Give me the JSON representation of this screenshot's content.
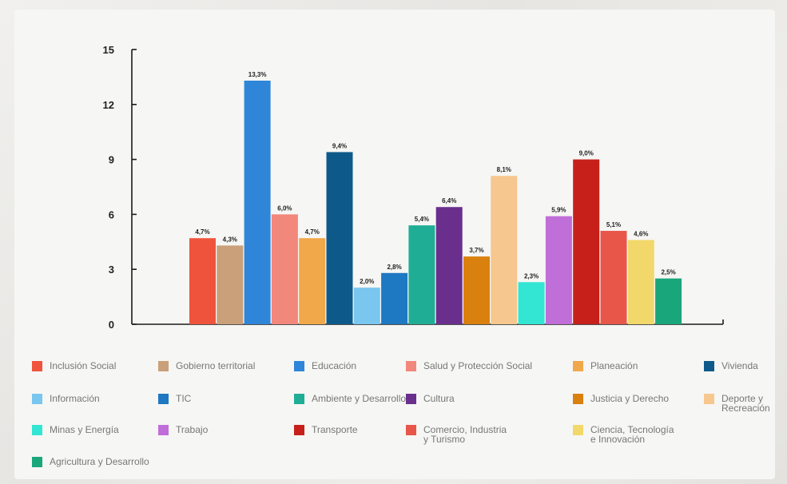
{
  "chart_data": {
    "type": "bar",
    "title": "",
    "xlabel": "",
    "ylabel": "",
    "ylim": [
      0,
      15
    ],
    "yticks": [
      0,
      3,
      6,
      9,
      12,
      15
    ],
    "grid": false,
    "legend_position": "bottom",
    "categories": [
      "Inclusión Social",
      "Gobierno territorial",
      "Educación",
      "Salud y Protección Social",
      "Planeación",
      "Vivienda",
      "Información",
      "TIC",
      "Ambiente y Desarrollo",
      "Cultura",
      "Justicia y Derecho",
      "Deporte y Recreación",
      "Minas y Energía",
      "Trabajo",
      "Transporte",
      "Comercio, Industria\ny Turismo",
      "Ciencia, Tecnología\ne Innovación",
      "Agricultura y Desarrollo"
    ],
    "values": [
      4.7,
      4.3,
      13.3,
      6.0,
      4.7,
      9.4,
      2.0,
      2.8,
      5.4,
      6.4,
      3.7,
      8.1,
      2.3,
      5.9,
      9.0,
      5.1,
      4.6,
      2.5
    ],
    "data_labels": [
      "4,7%",
      "4,3%",
      "13,3%",
      "6,0%",
      "4,7%",
      "9,4%",
      "2,0%",
      "2,8%",
      "5,4%",
      "6,4%",
      "3,7%",
      "8,1%",
      "2,3%",
      "5,9%",
      "9,0%",
      "5,1%",
      "4,6%",
      "2,5%"
    ],
    "colors": [
      "#f0533c",
      "#c9a07a",
      "#2f86d8",
      "#f2877c",
      "#f1a84a",
      "#0d5a8a",
      "#79c6ef",
      "#1f78c2",
      "#1fae95",
      "#6a2f8d",
      "#d9800f",
      "#f6c78e",
      "#33e5d3",
      "#c06ed8",
      "#c7201b",
      "#e8564a",
      "#f2d86a",
      "#1aa67b"
    ]
  }
}
